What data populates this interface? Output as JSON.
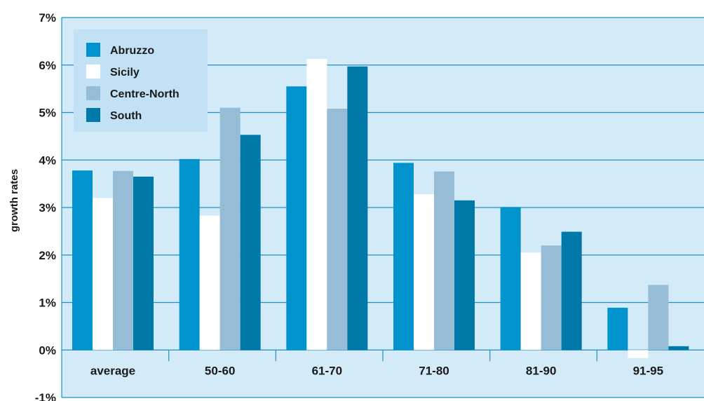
{
  "chart_data": {
    "type": "bar",
    "title": "",
    "xlabel": "",
    "ylabel": "growth rates",
    "ylim": [
      -1,
      7
    ],
    "yticks": [
      -1,
      0,
      1,
      2,
      3,
      4,
      5,
      6,
      7
    ],
    "ytick_labels": [
      "-1%",
      "0%",
      "1%",
      "2%",
      "3%",
      "4%",
      "5%",
      "6%",
      "7%"
    ],
    "grid": true,
    "legend_position": "top-left",
    "categories": [
      "average",
      "50-60",
      "61-70",
      "71-80",
      "81-90",
      "91-95"
    ],
    "series": [
      {
        "name": "Abruzzo",
        "color": "#0093cd",
        "values": [
          3.78,
          4.02,
          5.55,
          3.94,
          3.01,
          0.89
        ]
      },
      {
        "name": "Sicily",
        "color": "#ffffff",
        "values": [
          3.2,
          2.83,
          6.13,
          3.28,
          2.05,
          -0.17
        ]
      },
      {
        "name": "Centre-North",
        "color": "#96bcd6",
        "values": [
          3.77,
          5.1,
          5.08,
          3.76,
          2.2,
          1.37
        ]
      },
      {
        "name": "South",
        "color": "#0078a8",
        "values": [
          3.65,
          4.53,
          5.97,
          3.15,
          2.49,
          0.08
        ]
      }
    ],
    "colors": {
      "plot_background": "#d3eaf8",
      "legend_background": "#c2e1f4",
      "gridline": "#1f8fc4"
    }
  }
}
